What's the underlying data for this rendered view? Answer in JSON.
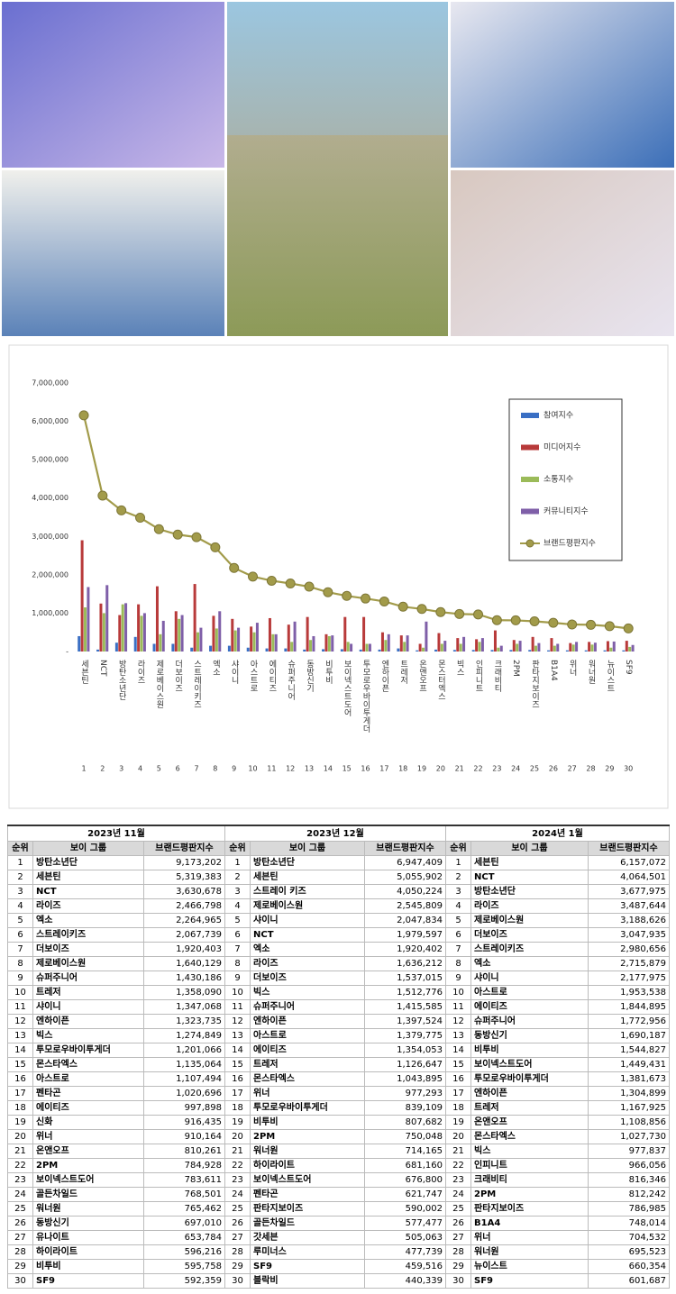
{
  "chart_data": {
    "type": "bar",
    "categories": [
      "세븐틴",
      "NCT",
      "방탄소년단",
      "라이즈",
      "제로베이스원",
      "더보이즈",
      "스트레이키즈",
      "엑소",
      "샤이니",
      "아스트로",
      "에이티즈",
      "슈퍼주니어",
      "동방신기",
      "비투비",
      "보이넥스트도어",
      "투모로우바이투게더",
      "엔하이픈",
      "트레저",
      "온앤오프",
      "몬스터엑스",
      "빅스",
      "인피니트",
      "크래비티",
      "2PM",
      "판타지보이즈",
      "B1A4",
      "위너",
      "워너원",
      "뉴이스트",
      "SF9"
    ],
    "category_numbers": [
      1,
      2,
      3,
      4,
      5,
      6,
      7,
      8,
      9,
      10,
      11,
      12,
      13,
      14,
      15,
      16,
      17,
      18,
      19,
      20,
      21,
      22,
      23,
      24,
      25,
      26,
      27,
      28,
      29,
      30
    ],
    "series": [
      {
        "name": "참여지수",
        "color": "#3a6fc4",
        "values": [
          400000,
          50000,
          230000,
          380000,
          200000,
          200000,
          100000,
          150000,
          150000,
          100000,
          80000,
          80000,
          50000,
          60000,
          60000,
          50000,
          50000,
          80000,
          30000,
          50000,
          40000,
          40000,
          40000,
          40000,
          40000,
          30000,
          30000,
          30000,
          30000,
          30000
        ]
      },
      {
        "name": "미디어지수",
        "color": "#b83a3a",
        "values": [
          2900000,
          1250000,
          950000,
          1230000,
          1700000,
          1050000,
          1760000,
          930000,
          850000,
          650000,
          870000,
          700000,
          900000,
          450000,
          900000,
          900000,
          500000,
          420000,
          200000,
          480000,
          350000,
          320000,
          550000,
          300000,
          380000,
          350000,
          220000,
          250000,
          270000,
          280000
        ]
      },
      {
        "name": "소통지수",
        "color": "#9bbb59",
        "values": [
          1150000,
          1000000,
          1230000,
          930000,
          450000,
          850000,
          500000,
          600000,
          550000,
          500000,
          450000,
          250000,
          300000,
          400000,
          250000,
          200000,
          300000,
          250000,
          100000,
          200000,
          200000,
          250000,
          100000,
          200000,
          150000,
          150000,
          180000,
          180000,
          100000,
          120000
        ]
      },
      {
        "name": "커뮤니티지수",
        "color": "#7f5fa8",
        "values": [
          1680000,
          1730000,
          1260000,
          1000000,
          800000,
          950000,
          620000,
          1050000,
          620000,
          750000,
          450000,
          780000,
          400000,
          420000,
          200000,
          200000,
          450000,
          420000,
          780000,
          280000,
          380000,
          350000,
          150000,
          280000,
          220000,
          200000,
          250000,
          230000,
          260000,
          170000
        ]
      },
      {
        "name": "브랜드평판지수",
        "color": "#a29b4a",
        "type": "line",
        "values": [
          6157072,
          4064501,
          3677975,
          3487644,
          3188626,
          3047935,
          2980656,
          2715879,
          2177975,
          1953538,
          1844895,
          1772956,
          1690187,
          1544827,
          1449431,
          1381673,
          1304899,
          1167925,
          1108856,
          1027730,
          977837,
          966056,
          816346,
          812242,
          786985,
          748014,
          704532,
          695523,
          660354,
          601687
        ]
      }
    ],
    "ylim": [
      0,
      7000000
    ],
    "yticks": [
      {
        "value": 0,
        "label": "-"
      },
      {
        "value": 1000000,
        "label": "1,000,000"
      },
      {
        "value": 2000000,
        "label": "2,000,000"
      },
      {
        "value": 3000000,
        "label": "3,000,000"
      },
      {
        "value": 4000000,
        "label": "4,000,000"
      },
      {
        "value": 5000000,
        "label": "5,000,000"
      },
      {
        "value": 6000000,
        "label": "6,000,000"
      },
      {
        "value": 7000000,
        "label": "7,000,000"
      }
    ],
    "grid": false,
    "legend": "upper right"
  },
  "tables": [
    {
      "month": "2023년 11월",
      "headers": [
        "순위",
        "보이 그룹",
        "브랜드평판지수"
      ],
      "rows": [
        [
          1,
          "방탄소년단",
          "9,173,202"
        ],
        [
          2,
          "세븐틴",
          "5,319,383"
        ],
        [
          3,
          "NCT",
          "3,630,678"
        ],
        [
          4,
          "라이즈",
          "2,466,798"
        ],
        [
          5,
          "엑소",
          "2,264,965"
        ],
        [
          6,
          "스트레이키즈",
          "2,067,739"
        ],
        [
          7,
          "더보이즈",
          "1,920,403"
        ],
        [
          8,
          "제로베이스원",
          "1,640,129"
        ],
        [
          9,
          "슈퍼주니어",
          "1,430,186"
        ],
        [
          10,
          "트레저",
          "1,358,090"
        ],
        [
          11,
          "샤이니",
          "1,347,068"
        ],
        [
          12,
          "엔하이픈",
          "1,323,735"
        ],
        [
          13,
          "빅스",
          "1,274,849"
        ],
        [
          14,
          "투모로우바이투게더",
          "1,201,066"
        ],
        [
          15,
          "몬스타엑스",
          "1,135,064"
        ],
        [
          16,
          "아스트로",
          "1,107,494"
        ],
        [
          17,
          "펜타곤",
          "1,020,696"
        ],
        [
          18,
          "에이티즈",
          "997,898"
        ],
        [
          19,
          "신화",
          "916,435"
        ],
        [
          20,
          "위너",
          "910,164"
        ],
        [
          21,
          "온앤오프",
          "810,261"
        ],
        [
          22,
          "2PM",
          "784,928"
        ],
        [
          23,
          "보이넥스트도어",
          "783,611"
        ],
        [
          24,
          "골든차일드",
          "768,501"
        ],
        [
          25,
          "워너원",
          "765,462"
        ],
        [
          26,
          "동방신기",
          "697,010"
        ],
        [
          27,
          "유나이트",
          "653,784"
        ],
        [
          28,
          "하이라이트",
          "596,216"
        ],
        [
          29,
          "비투비",
          "595,758"
        ],
        [
          30,
          "SF9",
          "592,359"
        ]
      ]
    },
    {
      "month": "2023년 12월",
      "headers": [
        "순위",
        "보이 그룹",
        "브랜드평판지수"
      ],
      "rows": [
        [
          1,
          "방탄소년단",
          "6,947,409"
        ],
        [
          2,
          "세븐틴",
          "5,055,902"
        ],
        [
          3,
          "스트레이 키즈",
          "4,050,224"
        ],
        [
          4,
          "제로베이스원",
          "2,545,809"
        ],
        [
          5,
          "샤이니",
          "2,047,834"
        ],
        [
          6,
          "NCT",
          "1,979,597"
        ],
        [
          7,
          "엑소",
          "1,920,402"
        ],
        [
          8,
          "라이즈",
          "1,636,212"
        ],
        [
          9,
          "더보이즈",
          "1,537,015"
        ],
        [
          10,
          "빅스",
          "1,512,776"
        ],
        [
          11,
          "슈퍼주니어",
          "1,415,585"
        ],
        [
          12,
          "엔하이픈",
          "1,397,524"
        ],
        [
          13,
          "아스트로",
          "1,379,775"
        ],
        [
          14,
          "에이티즈",
          "1,354,053"
        ],
        [
          15,
          "트레저",
          "1,126,647"
        ],
        [
          16,
          "몬스타엑스",
          "1,043,895"
        ],
        [
          17,
          "위너",
          "977,293"
        ],
        [
          18,
          "투모로우바이투게더",
          "839,109"
        ],
        [
          19,
          "비투비",
          "807,682"
        ],
        [
          20,
          "2PM",
          "750,048"
        ],
        [
          21,
          "워너원",
          "714,165"
        ],
        [
          22,
          "하이라이트",
          "681,160"
        ],
        [
          23,
          "보이넥스트도어",
          "676,800"
        ],
        [
          24,
          "펜타곤",
          "621,747"
        ],
        [
          25,
          "판타지보이즈",
          "590,002"
        ],
        [
          26,
          "골든차일드",
          "577,477"
        ],
        [
          27,
          "갓세븐",
          "505,063"
        ],
        [
          28,
          "루미너스",
          "477,739"
        ],
        [
          29,
          "SF9",
          "459,516"
        ],
        [
          30,
          "블락비",
          "440,339"
        ]
      ]
    },
    {
      "month": "2024년 1월",
      "headers": [
        "순위",
        "보이 그룹",
        "브랜드평판지수"
      ],
      "rows": [
        [
          1,
          "세븐틴",
          "6,157,072"
        ],
        [
          2,
          "NCT",
          "4,064,501"
        ],
        [
          3,
          "방탄소년단",
          "3,677,975"
        ],
        [
          4,
          "라이즈",
          "3,487,644"
        ],
        [
          5,
          "제로베이스원",
          "3,188,626"
        ],
        [
          6,
          "더보이즈",
          "3,047,935"
        ],
        [
          7,
          "스트레이키즈",
          "2,980,656"
        ],
        [
          8,
          "엑소",
          "2,715,879"
        ],
        [
          9,
          "샤이니",
          "2,177,975"
        ],
        [
          10,
          "아스트로",
          "1,953,538"
        ],
        [
          11,
          "에이티즈",
          "1,844,895"
        ],
        [
          12,
          "슈퍼주니어",
          "1,772,956"
        ],
        [
          13,
          "동방신기",
          "1,690,187"
        ],
        [
          14,
          "비투비",
          "1,544,827"
        ],
        [
          15,
          "보이넥스트도어",
          "1,449,431"
        ],
        [
          16,
          "투모로우바이투게더",
          "1,381,673"
        ],
        [
          17,
          "엔하이픈",
          "1,304,899"
        ],
        [
          18,
          "트레저",
          "1,167,925"
        ],
        [
          19,
          "온앤오프",
          "1,108,856"
        ],
        [
          20,
          "몬스타엑스",
          "1,027,730"
        ],
        [
          21,
          "빅스",
          "977,837"
        ],
        [
          22,
          "인피니트",
          "966,056"
        ],
        [
          23,
          "크래비티",
          "816,346"
        ],
        [
          24,
          "2PM",
          "812,242"
        ],
        [
          25,
          "판타지보이즈",
          "786,985"
        ],
        [
          26,
          "B1A4",
          "748,014"
        ],
        [
          27,
          "위너",
          "704,532"
        ],
        [
          28,
          "워너원",
          "695,523"
        ],
        [
          29,
          "뉴이스트",
          "660,354"
        ],
        [
          30,
          "SF9",
          "601,687"
        ]
      ]
    }
  ]
}
